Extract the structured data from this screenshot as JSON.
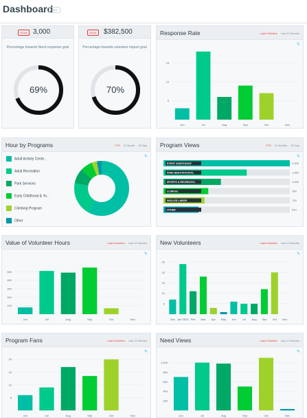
{
  "header": {
    "title": "Dashboard",
    "edit_label": "EDIT"
  },
  "colors": {
    "teal": "#00bfa5",
    "mint": "#00c98c",
    "green": "#00a865",
    "bright": "#00cc33",
    "lime": "#9ed22b",
    "track": "#e0e4e8",
    "ring": "#111111",
    "accent": "#e53935",
    "pencil": "#29b6f6"
  },
  "goals": [
    {
      "badge": "GOAL",
      "value": "3,000",
      "description": "Percentage towards Need response goal",
      "percent_label": "69%",
      "fraction": 0.69
    },
    {
      "badge": "GOAL",
      "value": "$382,500",
      "description": "Percentage towards volunteer impact goal",
      "percent_label": "70%",
      "fraction": 0.7
    }
  ],
  "cards": {
    "response_rate": {
      "title": "Response Rate",
      "filters": [
        "Last 6 Months",
        "Last 12 Months"
      ]
    },
    "hour_by_programs": {
      "title": "Hour by Programs",
      "filters": [
        "YTD",
        "12 Month",
        "30 Day"
      ]
    },
    "program_views": {
      "title": "Program Views",
      "filters": [
        "YTD",
        "12 Months",
        "30 Day"
      ]
    },
    "volunteer_hours": {
      "title": "Value of Volunteer Hours",
      "filters": [
        "Last 6 Months",
        "Last 12 Months"
      ]
    },
    "new_volunteers": {
      "title": "New Volunteers",
      "filters": [
        "Last 6 Months",
        "Last 12 Months"
      ]
    },
    "program_fans": {
      "title": "Program Fans",
      "filters": [
        "Last 6 Months",
        "Last 12 Months"
      ]
    },
    "need_views": {
      "title": "Need Views",
      "filters": [
        "Last 6 Months",
        "Last 12 Months"
      ]
    }
  },
  "chart_data": [
    {
      "id": "response_rate",
      "type": "bar",
      "categories": [
        "Jun",
        "Jul",
        "Aug",
        "Sep",
        "Oct",
        "Nov"
      ],
      "values": [
        3,
        18,
        6,
        9,
        7,
        0
      ],
      "colors": [
        "#00bfa5",
        "#00c98c",
        "#00a865",
        "#00cc33",
        "#9ed22b",
        "#00bfa5"
      ],
      "yticks": [
        5,
        10,
        15
      ],
      "ylim": [
        0,
        20
      ]
    },
    {
      "id": "hour_by_programs",
      "type": "pie",
      "labels": [
        "Adult Activity Cente..",
        "Adult Recreation",
        "Park Services",
        "Early Childhood & Yo..",
        "Climbing Program",
        "Other"
      ],
      "values": [
        58,
        20,
        9,
        7,
        3,
        3
      ],
      "colors": [
        "#00bfa5",
        "#00c98c",
        "#00a865",
        "#00cc33",
        "#9ed22b",
        "#0097a7"
      ]
    },
    {
      "id": "program_views",
      "type": "bar",
      "orientation": "horizontal",
      "categories": [
        "EVENT ASSISTANCE",
        "PARK BEAUTIFICATIO..",
        "SPORTS & RECREATIO..",
        "CLINICAL",
        "SKILLED LABOR",
        "OTHER"
      ],
      "values": [
        2200,
        1450,
        1000,
        780,
        715,
        610
      ],
      "value_labels": [
        "2,200",
        "1,450",
        "1,000",
        "780",
        "715",
        "610"
      ],
      "colors": [
        "#00bfa5",
        "#00c98c",
        "#00a865",
        "#00cc33",
        "#9ed22b",
        "#0097a7"
      ],
      "xlim": [
        0,
        2200
      ]
    },
    {
      "id": "volunteer_hours",
      "type": "bar",
      "categories": [
        "Jun",
        "Jul",
        "Aug",
        "Sep",
        "Oct",
        "Nov"
      ],
      "values": [
        80,
        510,
        490,
        550,
        70,
        0
      ],
      "colors": [
        "#00bfa5",
        "#00c98c",
        "#00a865",
        "#00cc33",
        "#9ed22b",
        "#00bfa5"
      ],
      "yticks": [
        100,
        200,
        300,
        400,
        500
      ],
      "ylim": [
        0,
        600
      ]
    },
    {
      "id": "new_volunteers",
      "type": "bar",
      "categories": [
        "Dec",
        "Jan 2020",
        "Feb",
        "Mar",
        "Apr",
        "May",
        "Jun",
        "Jul",
        "Aug",
        "Sep",
        "Oct",
        "Nov"
      ],
      "values": [
        7,
        24,
        11,
        18,
        3,
        1,
        6,
        5,
        5,
        12,
        20,
        0
      ],
      "colors": [
        "#00bfa5",
        "#00c98c",
        "#00a865",
        "#00cc33",
        "#9ed22b",
        "#0097a7",
        "#00bfa5",
        "#00c98c",
        "#00a865",
        "#00cc33",
        "#9ed22b",
        "#0097a7"
      ],
      "yticks": [
        5,
        10,
        15,
        20,
        25
      ],
      "ylim": [
        0,
        27
      ]
    },
    {
      "id": "program_fans",
      "type": "bar",
      "categories": [
        "Jun",
        "Jul",
        "Aug",
        "Sep",
        "Oct",
        "Nov"
      ],
      "values": [
        6,
        9,
        17,
        13.5,
        20,
        0
      ],
      "colors": [
        "#00bfa5",
        "#00c98c",
        "#00a865",
        "#00cc33",
        "#9ed22b",
        "#00bfa5"
      ],
      "yticks": [
        5,
        10,
        15,
        20
      ],
      "ylim": [
        0,
        21
      ]
    },
    {
      "id": "need_views",
      "type": "bar",
      "categories": [
        "Jun",
        "Jul",
        "Aug",
        "Sep",
        "Oct",
        "Nov"
      ],
      "values": [
        700,
        1000,
        980,
        500,
        1100,
        30
      ],
      "colors": [
        "#00bfa5",
        "#00c98c",
        "#00a865",
        "#00cc33",
        "#9ed22b",
        "#0097a7"
      ],
      "yticks": [
        200,
        400,
        600,
        800,
        "1,000"
      ],
      "ytick_values": [
        200,
        400,
        600,
        800,
        1000
      ],
      "ylim": [
        0,
        1150
      ]
    }
  ]
}
